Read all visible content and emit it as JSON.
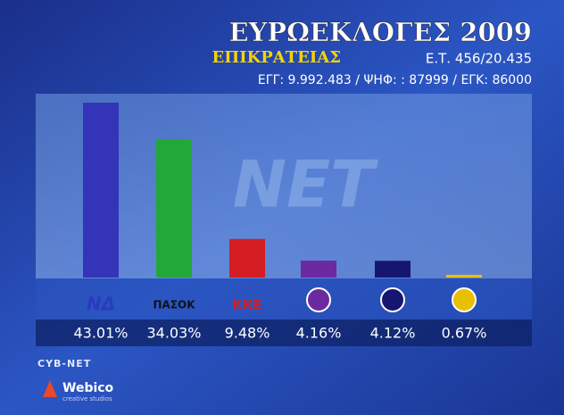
{
  "chart_data": {
    "type": "bar",
    "title": "ΕΥΡΩΕΚΛΟΓΕΣ 2009",
    "subtitle": "ΕΠΙΚΡΑΤΕΙΑΣ",
    "counted": "Ε.Τ. 456/20.435",
    "stats": "ΕΓΓ: 9.992.483 / ΨΗΦ: : 87999 / ΕΓΚ: 86000",
    "watermark": "ΝΕΤ",
    "categories": [
      "ΝΔ",
      "ΠΑΣΟΚ",
      "ΚΚΕ",
      null,
      null,
      null
    ],
    "values": [
      43.01,
      34.03,
      9.48,
      4.16,
      4.12,
      0.67
    ],
    "value_labels": [
      "43.01%",
      "34.03%",
      "9.48%",
      "4.16%",
      "4.12%",
      "0.67%"
    ],
    "colors": [
      "#3434b8",
      "#22a838",
      "#d41e22",
      "#6c2aa0",
      "#161670",
      "#e8c000"
    ],
    "footer": {
      "brand1": "CYB-NET",
      "brand2": "Webico",
      "brand2_sub": "creative studios"
    }
  }
}
